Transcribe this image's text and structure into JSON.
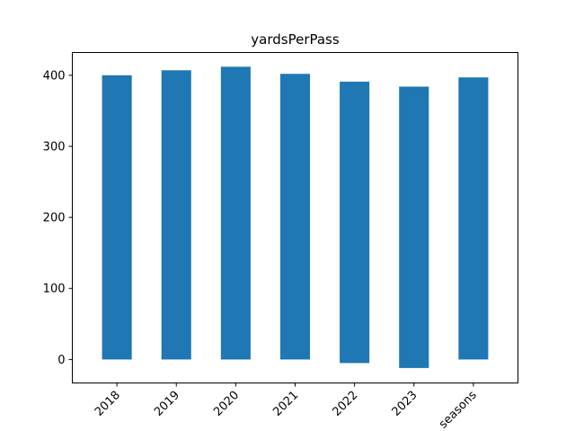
{
  "chart_data": {
    "type": "bar",
    "title": "yardsPerPass",
    "xlabel": "",
    "ylabel": "",
    "categories": [
      "2018",
      "2019",
      "2020",
      "2021",
      "2022",
      "2023",
      "seasons"
    ],
    "values": [
      400,
      407,
      412,
      402,
      391,
      384,
      397
    ],
    "lows": [
      0,
      0,
      0,
      0,
      -5,
      -12,
      0
    ],
    "ylim": [
      -33,
      432
    ],
    "yticks": [
      0,
      100,
      200,
      300,
      400
    ],
    "bar_color": "#1f77b4",
    "grid": false,
    "legend": "none"
  }
}
